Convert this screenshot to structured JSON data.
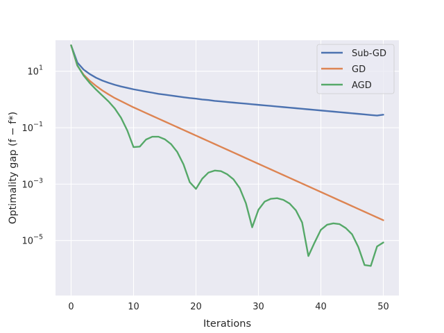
{
  "chart_data": {
    "type": "line",
    "xlabel": "Iterations",
    "ylabel": "Optimality gap (f − f*)",
    "yscale": "log",
    "xlim": [
      -2.5,
      52.5
    ],
    "ylim_log10": [
      -6.95,
      2.1
    ],
    "xticks": [
      0,
      10,
      20,
      30,
      40,
      50
    ],
    "yticks": [
      {
        "exp": 1,
        "label": "10",
        "sup": "1"
      },
      {
        "exp": -1,
        "label": "10",
        "sup": "−1"
      },
      {
        "exp": -3,
        "label": "10",
        "sup": "−3"
      },
      {
        "exp": -5,
        "label": "10",
        "sup": "−5"
      }
    ],
    "grid": true,
    "legend": "top-right",
    "series": [
      {
        "name": "Sub-GD",
        "color": "#4c72b0",
        "x": [
          0,
          1,
          2,
          3,
          4,
          5,
          6,
          7,
          8,
          9,
          10,
          11,
          12,
          13,
          14,
          15,
          16,
          17,
          18,
          19,
          20,
          21,
          22,
          23,
          24,
          25,
          26,
          27,
          28,
          29,
          30,
          31,
          32,
          33,
          34,
          35,
          36,
          37,
          38,
          39,
          40,
          41,
          42,
          43,
          44,
          45,
          46,
          47,
          48,
          49,
          50
        ],
        "log10y": [
          1.92,
          1.31,
          1.06,
          0.9,
          0.77,
          0.67,
          0.59,
          0.52,
          0.46,
          0.41,
          0.36,
          0.32,
          0.28,
          0.24,
          0.2,
          0.17,
          0.14,
          0.11,
          0.08,
          0.05,
          0.03,
          0.0,
          -0.02,
          -0.05,
          -0.07,
          -0.09,
          -0.11,
          -0.13,
          -0.15,
          -0.17,
          -0.19,
          -0.21,
          -0.23,
          -0.25,
          -0.27,
          -0.29,
          -0.31,
          -0.33,
          -0.35,
          -0.37,
          -0.39,
          -0.41,
          -0.43,
          -0.45,
          -0.47,
          -0.49,
          -0.51,
          -0.53,
          -0.55,
          -0.57,
          -0.54
        ]
      },
      {
        "name": "GD",
        "color": "#dd8452",
        "x": [
          0,
          1,
          2,
          3,
          4,
          5,
          6,
          7,
          8,
          9,
          10,
          11,
          12,
          13,
          14,
          15,
          16,
          17,
          18,
          19,
          20,
          21,
          22,
          23,
          24,
          25,
          26,
          27,
          28,
          29,
          30,
          31,
          32,
          33,
          34,
          35,
          36,
          37,
          38,
          39,
          40,
          41,
          42,
          43,
          44,
          45,
          46,
          47,
          48,
          49,
          50
        ],
        "log10y": [
          1.92,
          1.2,
          0.88,
          0.66,
          0.48,
          0.32,
          0.18,
          0.05,
          -0.06,
          -0.17,
          -0.28,
          -0.38,
          -0.48,
          -0.58,
          -0.68,
          -0.78,
          -0.88,
          -0.98,
          -1.08,
          -1.18,
          -1.28,
          -1.38,
          -1.48,
          -1.58,
          -1.68,
          -1.78,
          -1.88,
          -1.98,
          -2.08,
          -2.18,
          -2.28,
          -2.38,
          -2.48,
          -2.58,
          -2.68,
          -2.78,
          -2.88,
          -2.98,
          -3.08,
          -3.18,
          -3.28,
          -3.38,
          -3.48,
          -3.58,
          -3.68,
          -3.78,
          -3.88,
          -3.98,
          -4.08,
          -4.18,
          -4.28
        ]
      },
      {
        "name": "AGD",
        "color": "#55a868",
        "x": [
          0,
          1,
          2,
          3,
          4,
          5,
          6,
          7,
          8,
          9,
          10,
          11,
          12,
          13,
          14,
          15,
          16,
          17,
          18,
          19,
          20,
          21,
          22,
          23,
          24,
          25,
          26,
          27,
          28,
          29,
          30,
          31,
          32,
          33,
          34,
          35,
          36,
          37,
          38,
          39,
          40,
          41,
          42,
          43,
          44,
          45,
          46,
          47,
          48,
          49,
          50
        ],
        "log10y": [
          1.92,
          1.21,
          0.85,
          0.58,
          0.35,
          0.14,
          -0.07,
          -0.32,
          -0.65,
          -1.1,
          -1.69,
          -1.67,
          -1.42,
          -1.32,
          -1.32,
          -1.41,
          -1.58,
          -1.86,
          -2.3,
          -2.93,
          -3.17,
          -2.81,
          -2.59,
          -2.52,
          -2.54,
          -2.65,
          -2.83,
          -3.14,
          -3.68,
          -4.53,
          -3.91,
          -3.62,
          -3.52,
          -3.5,
          -3.56,
          -3.69,
          -3.93,
          -4.36,
          -5.55,
          -5.07,
          -4.62,
          -4.44,
          -4.39,
          -4.42,
          -4.56,
          -4.78,
          -5.23,
          -5.87,
          -5.9,
          -5.21,
          -5.07
        ]
      }
    ]
  }
}
